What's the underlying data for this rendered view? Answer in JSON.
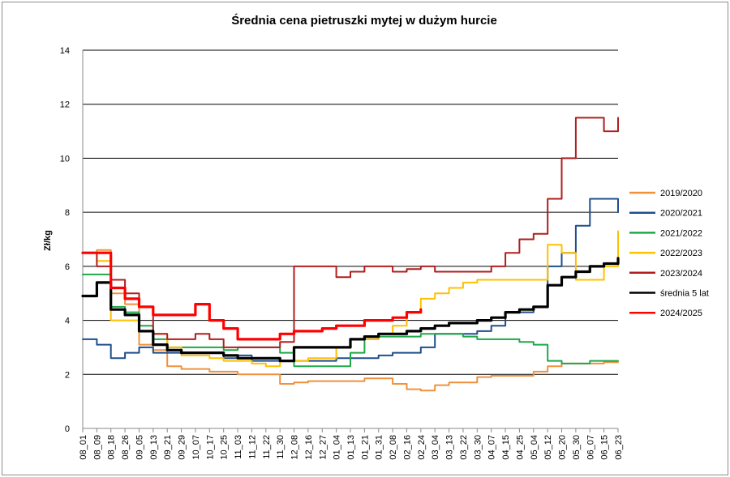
{
  "chart_data": {
    "type": "line",
    "title": "Średnia cena pietruszki mytej w dużym hurcie",
    "xlabel": "",
    "ylabel": "Zł/kg",
    "ylim": [
      0,
      14
    ],
    "yticks": [
      0,
      2,
      4,
      6,
      8,
      10,
      12,
      14
    ],
    "grid": true,
    "legend_position": "right",
    "x_ticks": [
      "08_01",
      "08_09",
      "08_18",
      "08_26",
      "09_05",
      "09_13",
      "09_21",
      "09_29",
      "10_07",
      "10_17",
      "10_25",
      "11_03",
      "11_12",
      "11_22",
      "11_30",
      "12_08",
      "12_16",
      "12_27",
      "01_04",
      "01_13",
      "01_21",
      "01_31",
      "02_08",
      "02_16",
      "02_24",
      "03_04",
      "03_13",
      "03_22",
      "03_30",
      "04_07",
      "04_15",
      "04_25",
      "05_04",
      "05_12",
      "05_20",
      "05_30",
      "06_07",
      "06_15",
      "06_23"
    ],
    "series": [
      {
        "name": "2019/2020",
        "color": "#f0913c",
        "values": [
          6.5,
          6.6,
          5.0,
          4.6,
          3.1,
          2.9,
          2.3,
          2.2,
          2.2,
          2.1,
          2.1,
          2.0,
          2.0,
          2.0,
          1.65,
          1.7,
          1.75,
          1.75,
          1.75,
          1.75,
          1.85,
          1.85,
          1.65,
          1.45,
          1.4,
          1.6,
          1.7,
          1.7,
          1.9,
          1.95,
          1.95,
          1.95,
          2.1,
          2.3,
          2.4,
          2.4,
          2.4,
          2.45,
          2.45
        ]
      },
      {
        "name": "2020/2021",
        "color": "#1f4e8c",
        "values": [
          3.3,
          3.1,
          2.6,
          2.8,
          3.0,
          2.8,
          2.8,
          2.8,
          2.8,
          2.8,
          2.6,
          2.7,
          2.5,
          2.5,
          2.5,
          2.5,
          2.5,
          2.5,
          2.6,
          2.6,
          2.6,
          2.7,
          2.8,
          2.8,
          3.0,
          3.5,
          3.5,
          3.5,
          3.6,
          3.8,
          4.3,
          4.3,
          4.5,
          6.0,
          6.5,
          7.5,
          8.5,
          8.5,
          8.0
        ]
      },
      {
        "name": "2021/2022",
        "color": "#1fa84a",
        "values": [
          5.7,
          5.7,
          4.5,
          4.3,
          3.8,
          3.3,
          3.0,
          3.0,
          3.0,
          3.0,
          2.9,
          3.0,
          3.0,
          3.0,
          2.8,
          2.3,
          2.3,
          2.3,
          2.3,
          2.8,
          3.3,
          3.4,
          3.4,
          3.4,
          3.5,
          3.5,
          3.5,
          3.4,
          3.3,
          3.3,
          3.3,
          3.2,
          3.1,
          2.5,
          2.4,
          2.4,
          2.5,
          2.5,
          2.5
        ]
      },
      {
        "name": "2022/2023",
        "color": "#ffc000",
        "values": [
          6.5,
          6.2,
          4.0,
          4.0,
          3.6,
          3.5,
          3.0,
          2.7,
          2.7,
          2.6,
          2.5,
          2.5,
          2.4,
          2.3,
          2.5,
          2.5,
          2.6,
          2.6,
          3.0,
          3.3,
          3.3,
          3.5,
          3.8,
          4.3,
          4.8,
          5.0,
          5.2,
          5.4,
          5.5,
          5.5,
          5.5,
          5.5,
          5.5,
          6.8,
          6.5,
          5.5,
          5.5,
          6.0,
          7.3
        ]
      },
      {
        "name": "2023/2024",
        "color": "#b01e1e",
        "values": [
          6.5,
          6.0,
          5.5,
          5.0,
          4.5,
          3.5,
          3.3,
          3.3,
          3.5,
          3.3,
          3.0,
          3.0,
          3.0,
          3.0,
          3.2,
          6.0,
          6.0,
          6.0,
          5.6,
          5.8,
          6.0,
          6.0,
          5.8,
          5.9,
          6.0,
          5.8,
          5.8,
          5.8,
          5.8,
          6.0,
          6.5,
          7.0,
          7.2,
          8.5,
          10.0,
          11.5,
          11.5,
          11.0,
          11.5
        ]
      },
      {
        "name": "średnia 5 lat",
        "color": "#000000",
        "values": [
          4.9,
          5.4,
          4.4,
          4.2,
          3.6,
          3.1,
          2.9,
          2.8,
          2.8,
          2.8,
          2.7,
          2.6,
          2.6,
          2.6,
          2.5,
          3.0,
          3.0,
          3.0,
          3.0,
          3.3,
          3.4,
          3.5,
          3.5,
          3.6,
          3.7,
          3.8,
          3.9,
          3.9,
          4.0,
          4.1,
          4.3,
          4.4,
          4.5,
          5.3,
          5.6,
          5.8,
          6.0,
          6.1,
          6.3
        ]
      },
      {
        "name": "2024/2025",
        "color": "#ff0000",
        "values": [
          6.5,
          6.5,
          5.2,
          4.8,
          4.5,
          4.2,
          4.2,
          4.2,
          4.6,
          4.0,
          3.7,
          3.3,
          3.3,
          3.3,
          3.5,
          3.6,
          3.6,
          3.7,
          3.8,
          3.8,
          4.0,
          4.0,
          4.1,
          4.3,
          4.4
        ]
      }
    ]
  }
}
